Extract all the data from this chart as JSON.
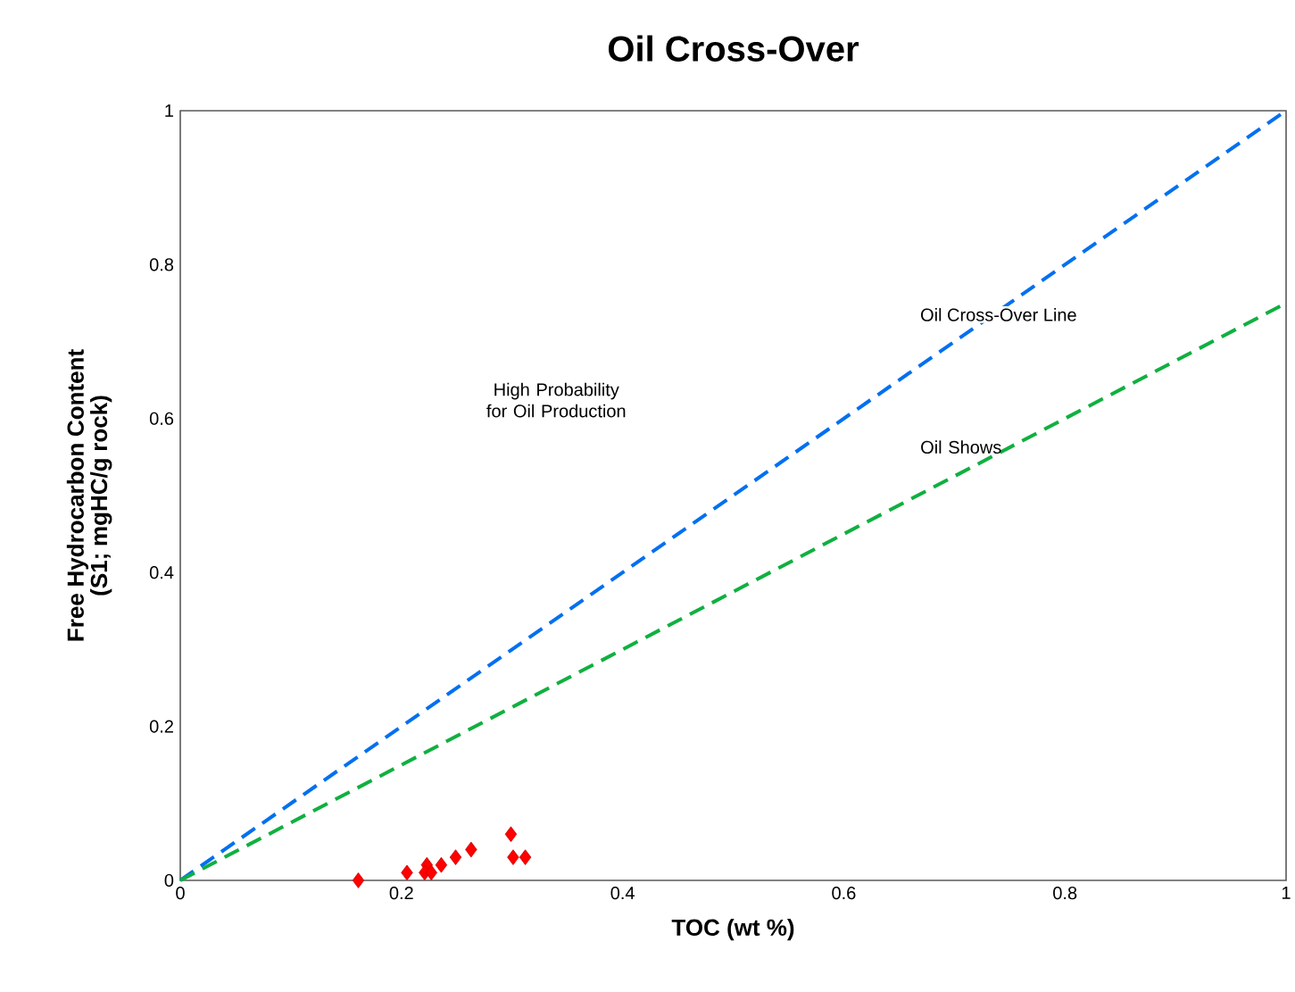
{
  "chart_data": {
    "type": "scatter",
    "title": "Oil Cross-Over",
    "xlabel": "TOC (wt %)",
    "ylabel": "Free Hydrocarbon Content (S1; mgHC/g rock)",
    "xlim": [
      0,
      1
    ],
    "ylim": [
      0,
      1
    ],
    "xticks": [
      0,
      0.2,
      0.4,
      0.6,
      0.8,
      1
    ],
    "yticks": [
      0,
      0.2,
      0.4,
      0.6,
      0.8,
      1
    ],
    "grid": false,
    "series": [
      {
        "type": "line",
        "color": "#0070f0",
        "line_style": "dashed",
        "marker": "none",
        "x": [
          0,
          1
        ],
        "values": [
          0,
          1
        ]
      },
      {
        "type": "line",
        "color": "#10b040",
        "line_style": "dashed",
        "marker": "none",
        "x": [
          0,
          1
        ],
        "values": [
          0,
          0.75
        ]
      },
      {
        "color": "#ff0000",
        "marker": "diamond",
        "x": [
          0.161,
          0.205,
          0.223,
          0.221,
          0.227,
          0.236,
          0.249,
          0.263,
          0.299,
          0.301,
          0.312
        ],
        "values": [
          0,
          0.01,
          0.02,
          0.01,
          0.01,
          0.02,
          0.03,
          0.04,
          0.06,
          0.03,
          0.03
        ]
      }
    ],
    "annotations": [
      {
        "text": "Oil Cross-Over Line",
        "x": 0.74,
        "y": 0.735
      },
      "Oil Shows",
      "High Probability for Oil Production"
    ]
  }
}
